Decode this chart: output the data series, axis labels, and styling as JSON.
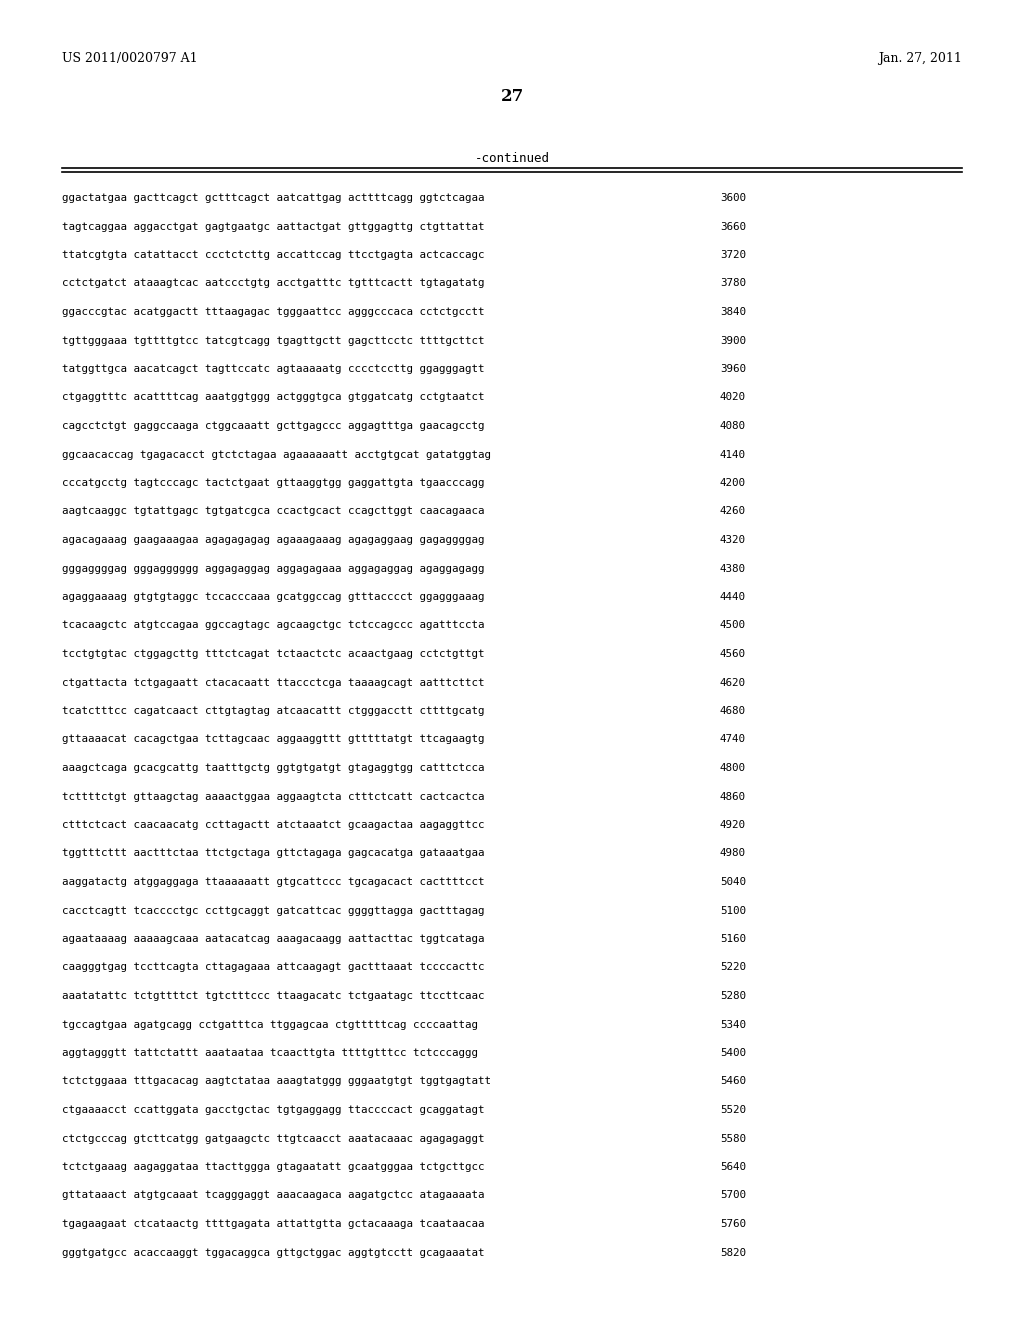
{
  "header_left": "US 2011/0020797 A1",
  "header_right": "Jan. 27, 2011",
  "page_number": "27",
  "section_label": "-continued",
  "background_color": "#ffffff",
  "text_color": "#000000",
  "sequence_lines": [
    [
      "ggactatgaa gacttcagct gctttcagct aatcattgag acttttcagg ggtctcagaa",
      "3600"
    ],
    [
      "tagtcaggaa aggacctgat gagtgaatgc aattactgat gttggagttg ctgttattat",
      "3660"
    ],
    [
      "ttatcgtgta catattacct ccctctcttg accattccag ttcctgagta actcaccagc",
      "3720"
    ],
    [
      "cctctgatct ataaagtcac aatccctgtg acctgatttc tgtttcactt tgtagatatg",
      "3780"
    ],
    [
      "ggacccgtac acatggactt tttaagagac tgggaattcc agggcccaca cctctgcctt",
      "3840"
    ],
    [
      "tgttgggaaa tgttttgtcc tatcgtcagg tgagttgctt gagcttcctc ttttgcttct",
      "3900"
    ],
    [
      "tatggttgca aacatcagct tagttccatc agtaaaaatg cccctccttg ggagggagtt",
      "3960"
    ],
    [
      "ctgaggtttc acattttcag aaatggtggg actgggtgca gtggatcatg cctgtaatct",
      "4020"
    ],
    [
      "cagcctctgt gaggccaaga ctggcaaatt gcttgagccc aggagtttga gaacagcctg",
      "4080"
    ],
    [
      "ggcaacaccag tgagacacct gtctctagaa agaaaaaatt acctgtgcat gatatggtag",
      "4140"
    ],
    [
      "cccatgcctg tagtcccagc tactctgaat gttaaggtgg gaggattgta tgaacccagg",
      "4200"
    ],
    [
      "aagtcaaggc tgtattgagc tgtgatcgca ccactgcact ccagcttggt caacagaaca",
      "4260"
    ],
    [
      "agacagaaag gaagaaagaa agagagagag agaaagaaag agagaggaag gagaggggag",
      "4320"
    ],
    [
      "gggaggggag gggagggggg aggagaggag aggagagaaa aggagaggag agaggagagg",
      "4380"
    ],
    [
      "agaggaaaag gtgtgtaggc tccacccaaa gcatggccag gtttacccct ggagggaaag",
      "4440"
    ],
    [
      "tcacaagctc atgtccagaa ggccagtagc agcaagctgc tctccagccc agatttccta",
      "4500"
    ],
    [
      "tcctgtgtac ctggagcttg tttctcagat tctaactctc acaactgaag cctctgttgt",
      "4560"
    ],
    [
      "ctgattacta tctgagaatt ctacacaatt ttaccctcga taaaagcagt aatttcttct",
      "4620"
    ],
    [
      "tcatctttcc cagatcaact cttgtagtag atcaacattt ctgggacctt cttttgcatg",
      "4680"
    ],
    [
      "gttaaaacat cacagctgaa tcttagcaac aggaaggttt gtttttatgt ttcagaagtg",
      "4740"
    ],
    [
      "aaagctcaga gcacgcattg taatttgctg ggtgtgatgt gtagaggtgg catttctcca",
      "4800"
    ],
    [
      "tcttttctgt gttaagctag aaaactggaa aggaagtcta ctttctcatt cactcactca",
      "4860"
    ],
    [
      "ctttctcact caacaacatg ccttagactt atctaaatct gcaagactaa aagaggttcc",
      "4920"
    ],
    [
      "tggtttcttt aactttctaa ttctgctaga gttctagaga gagcacatga gataaatgaa",
      "4980"
    ],
    [
      "aaggatactg atggaggaga ttaaaaaatt gtgcattccc tgcagacact cacttttcct",
      "5040"
    ],
    [
      "cacctcagtt tcacccctgc ccttgcaggt gatcattcac ggggttagga gactttagag",
      "5100"
    ],
    [
      "agaataaaag aaaaagcaaa aatacatcag aaagacaagg aattacttac tggtcataga",
      "5160"
    ],
    [
      "caagggtgag tccttcagta cttagagaaa attcaagagt gactttaaat tccccacttc",
      "5220"
    ],
    [
      "aaatatattc tctgttttct tgtctttccc ttaagacatc tctgaatagc ttccttcaac",
      "5280"
    ],
    [
      "tgccagtgaa agatgcagg cctgatttca ttggagcaa ctgtttttcag ccccaattag",
      "5340"
    ],
    [
      "aggtagggtt tattctattt aaataataa tcaacttgta ttttgtttcc tctcccaggg",
      "5400"
    ],
    [
      "tctctggaaa tttgacacag aagtctataa aaagtatggg gggaatgtgt tggtgagtatt",
      "5460"
    ],
    [
      "ctgaaaacct ccattggata gacctgctac tgtgaggagg ttaccccact gcaggatagt",
      "5520"
    ],
    [
      "ctctgcccag gtcttcatgg gatgaagctc ttgtcaacct aaatacaaac agagagaggt",
      "5580"
    ],
    [
      "tctctgaaag aagaggataa ttacttggga gtagaatatt gcaatgggaa tctgcttgcc",
      "5640"
    ],
    [
      "gttataaact atgtgcaaat tcagggaggt aaacaagaca aagatgctcc atagaaaata",
      "5700"
    ],
    [
      "tgagaagaat ctcataactg ttttgagata attattgtta gctacaaaga tcaataacaa",
      "5760"
    ],
    [
      "gggtgatgcc acaccaaggt tggacaggca gttgctggac aggtgtcctt gcagaaatat",
      "5820"
    ]
  ]
}
